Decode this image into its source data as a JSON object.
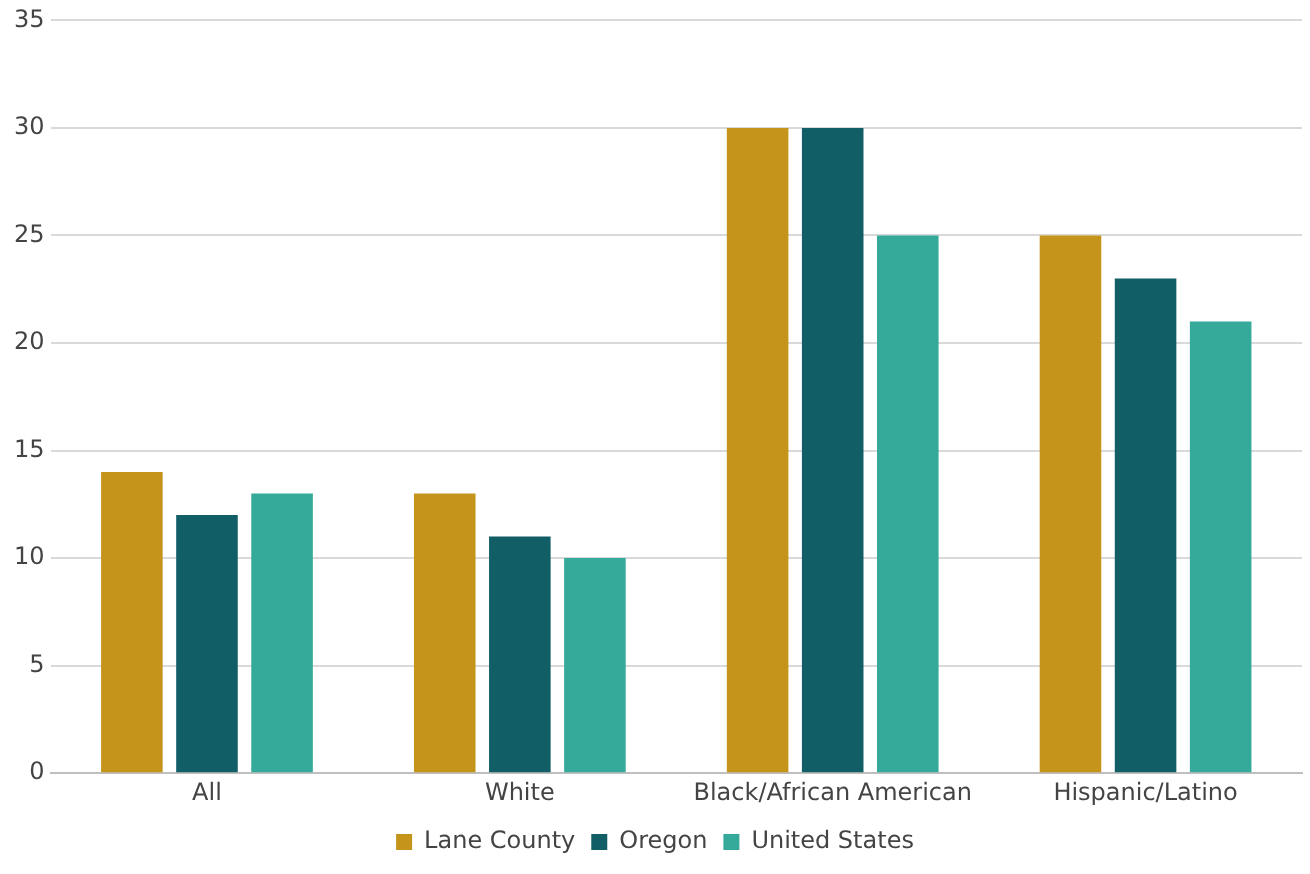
{
  "chart_data": {
    "type": "bar",
    "categories": [
      "All",
      "White",
      "Black/African American",
      "Hispanic/Latino"
    ],
    "series": [
      {
        "name": "Lane County",
        "color": "#c5941a",
        "values": [
          14,
          13,
          30,
          25
        ]
      },
      {
        "name": "Oregon",
        "color": "#125e66",
        "values": [
          12,
          11,
          30,
          23
        ]
      },
      {
        "name": "United States",
        "color": "#35a99a",
        "values": [
          13,
          10,
          25,
          21
        ]
      }
    ],
    "ylim": [
      0,
      35
    ],
    "yticks": [
      0,
      5,
      10,
      15,
      20,
      25,
      30,
      35
    ],
    "grid": "y",
    "legend": "bottom"
  }
}
